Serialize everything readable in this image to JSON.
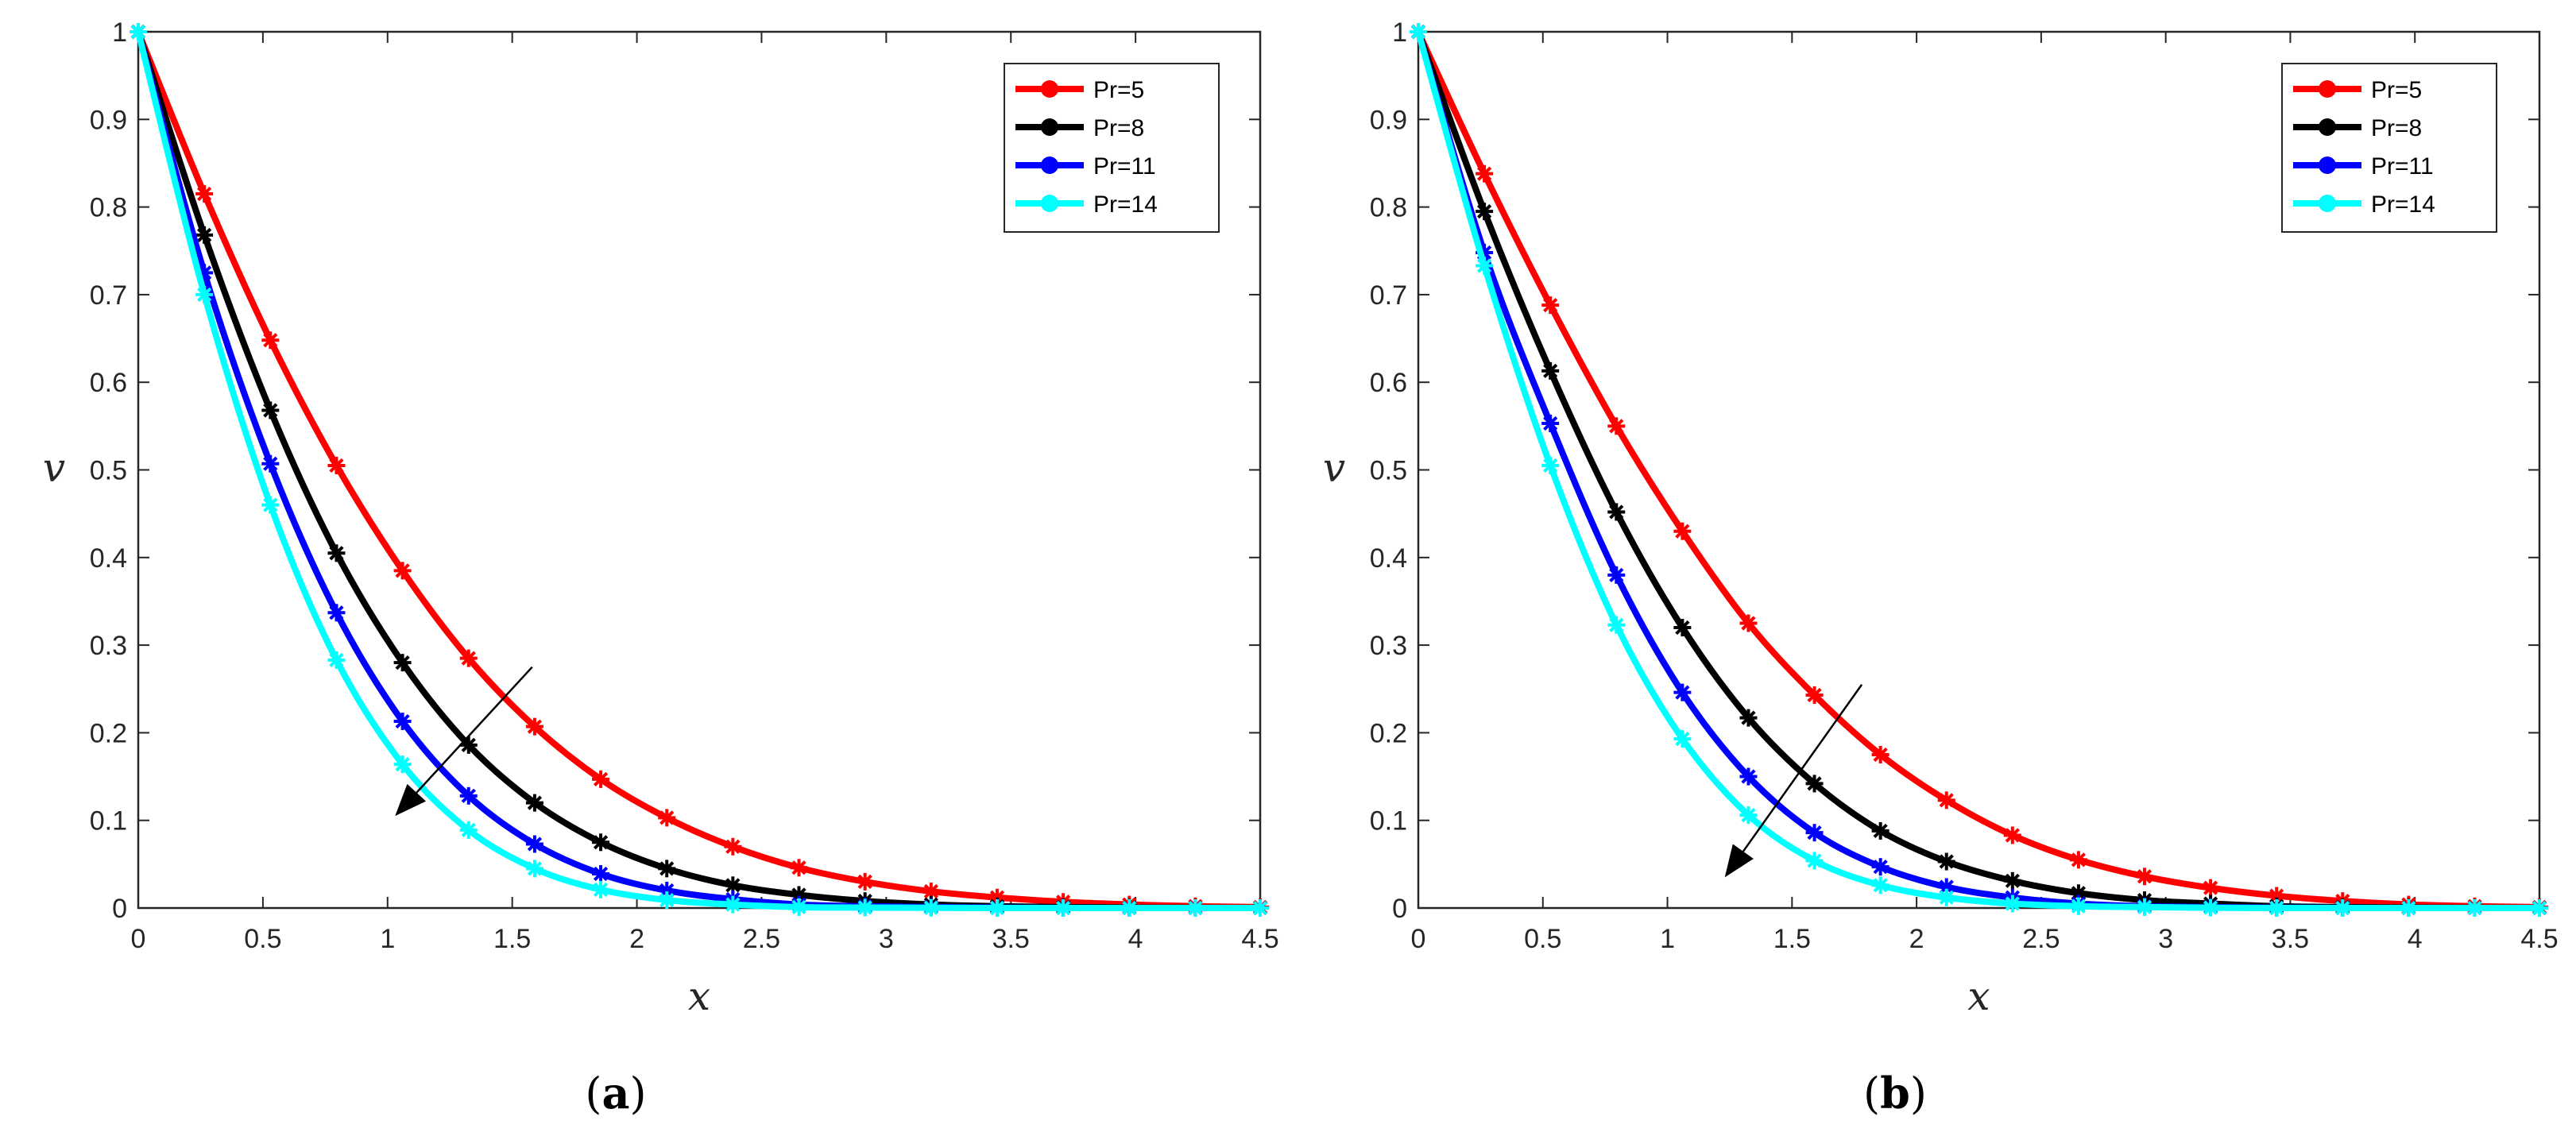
{
  "chart_data": [
    {
      "type": "line",
      "caption": {
        "open": "(",
        "letter": "a",
        "close": ")"
      },
      "xlabel": "x",
      "ylabel": "v",
      "xlim": [
        0,
        4.5
      ],
      "ylim": [
        0,
        1
      ],
      "xticks": [
        "0",
        "0.5",
        "1",
        "1.5",
        "2",
        "2.5",
        "3",
        "3.5",
        "4",
        "4.5"
      ],
      "yticks": [
        "0",
        "0.1",
        "0.2",
        "0.3",
        "0.4",
        "0.5",
        "0.6",
        "0.7",
        "0.8",
        "0.9",
        "1"
      ],
      "legend_position": "top-right",
      "marker_x": [
        0,
        0.265,
        0.53,
        0.795,
        1.06,
        1.325,
        1.59,
        1.855,
        2.12,
        2.385,
        2.65,
        2.915,
        3.18,
        3.445,
        3.71,
        3.975,
        4.24,
        4.5
      ],
      "series": [
        {
          "name": "Pr=5",
          "color": "#ff0000",
          "y": [
            1,
            0.815,
            0.648,
            0.505,
            0.385,
            0.285,
            0.207,
            0.147,
            0.103,
            0.07,
            0.046,
            0.03,
            0.019,
            0.012,
            0.007,
            0.004,
            0.002,
            0.001
          ]
        },
        {
          "name": "Pr=8",
          "color": "#000000",
          "y": [
            1,
            0.768,
            0.568,
            0.405,
            0.28,
            0.186,
            0.12,
            0.075,
            0.045,
            0.026,
            0.015,
            0.008,
            0.004,
            0.002,
            0.001,
            0.0005,
            0.0002,
            0.0001
          ]
        },
        {
          "name": "Pr=11",
          "color": "#0000ff",
          "y": [
            1,
            0.725,
            0.507,
            0.337,
            0.213,
            0.128,
            0.073,
            0.039,
            0.02,
            0.01,
            0.004,
            0.002,
            0.001,
            0.0004,
            0.0001,
            0,
            0,
            0
          ]
        },
        {
          "name": "Pr=14",
          "color": "#00ffff",
          "y": [
            1,
            0.7,
            0.46,
            0.283,
            0.164,
            0.089,
            0.045,
            0.021,
            0.009,
            0.004,
            0.001,
            0.0005,
            0.0002,
            0,
            0,
            0,
            0,
            0
          ]
        }
      ],
      "arrow": {
        "from": [
          1.58,
          0.275
        ],
        "to": [
          1.03,
          0.105
        ]
      }
    },
    {
      "type": "line",
      "caption": {
        "open": "(",
        "letter": "b",
        "close": ")"
      },
      "xlabel": "x",
      "ylabel": "v",
      "xlim": [
        0,
        4.5
      ],
      "ylim": [
        0,
        1
      ],
      "xticks": [
        "0",
        "0.5",
        "1",
        "1.5",
        "2",
        "2.5",
        "3",
        "3.5",
        "4",
        "4.5"
      ],
      "yticks": [
        "0",
        "0.1",
        "0.2",
        "0.3",
        "0.4",
        "0.5",
        "0.6",
        "0.7",
        "0.8",
        "0.9",
        "1"
      ],
      "legend_position": "top-right",
      "marker_x": [
        0,
        0.265,
        0.53,
        0.795,
        1.06,
        1.325,
        1.59,
        1.855,
        2.12,
        2.385,
        2.65,
        2.915,
        3.18,
        3.445,
        3.71,
        3.975,
        4.24,
        4.5
      ],
      "series": [
        {
          "name": "Pr=5",
          "color": "#ff0000",
          "y": [
            1,
            0.838,
            0.688,
            0.55,
            0.43,
            0.325,
            0.243,
            0.175,
            0.123,
            0.083,
            0.055,
            0.036,
            0.023,
            0.014,
            0.008,
            0.004,
            0.002,
            0.001
          ]
        },
        {
          "name": "Pr=8",
          "color": "#000000",
          "y": [
            1,
            0.795,
            0.613,
            0.452,
            0.32,
            0.217,
            0.142,
            0.088,
            0.053,
            0.031,
            0.017,
            0.009,
            0.005,
            0.002,
            0.001,
            0.0005,
            0.0002,
            0.0001
          ]
        },
        {
          "name": "Pr=11",
          "color": "#0000ff",
          "y": [
            1,
            0.748,
            0.553,
            0.38,
            0.246,
            0.15,
            0.086,
            0.047,
            0.024,
            0.012,
            0.005,
            0.002,
            0.001,
            0.0004,
            0.0001,
            0,
            0,
            0
          ]
        },
        {
          "name": "Pr=14",
          "color": "#00ffff",
          "y": [
            1,
            0.733,
            0.505,
            0.323,
            0.193,
            0.106,
            0.054,
            0.026,
            0.012,
            0.005,
            0.002,
            0.001,
            0.0003,
            0,
            0,
            0,
            0,
            0
          ]
        }
      ],
      "arrow": {
        "from": [
          1.78,
          0.255
        ],
        "to": [
          1.23,
          0.035
        ]
      }
    }
  ]
}
